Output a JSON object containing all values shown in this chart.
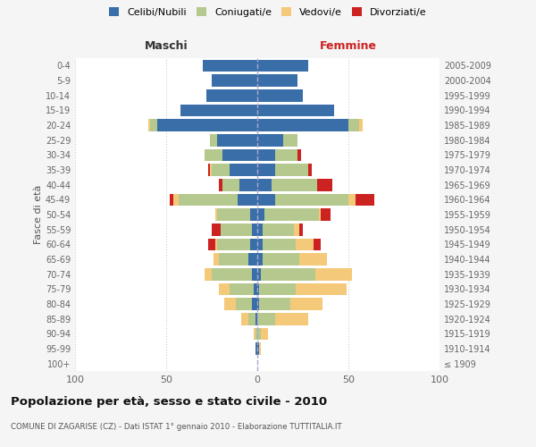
{
  "age_groups": [
    "100+",
    "95-99",
    "90-94",
    "85-89",
    "80-84",
    "75-79",
    "70-74",
    "65-69",
    "60-64",
    "55-59",
    "50-54",
    "45-49",
    "40-44",
    "35-39",
    "30-34",
    "25-29",
    "20-24",
    "15-19",
    "10-14",
    "5-9",
    "0-4"
  ],
  "birth_years": [
    "≤ 1909",
    "1910-1914",
    "1915-1919",
    "1920-1924",
    "1925-1929",
    "1930-1934",
    "1935-1939",
    "1940-1944",
    "1945-1949",
    "1950-1954",
    "1955-1959",
    "1960-1964",
    "1965-1969",
    "1970-1974",
    "1975-1979",
    "1980-1984",
    "1985-1989",
    "1990-1994",
    "1995-1999",
    "2000-2004",
    "2005-2009"
  ],
  "colors": {
    "celibi": "#3a6ea8",
    "coniugati": "#b5c98e",
    "vedovi": "#f5c97a",
    "divorziati": "#cc2222"
  },
  "maschi": {
    "celibi": [
      0,
      1,
      0,
      1,
      3,
      2,
      3,
      5,
      4,
      3,
      4,
      11,
      10,
      15,
      19,
      22,
      55,
      42,
      28,
      25,
      30
    ],
    "coniugati": [
      0,
      0,
      1,
      4,
      9,
      13,
      22,
      16,
      18,
      17,
      18,
      32,
      9,
      10,
      10,
      4,
      4,
      0,
      0,
      0,
      0
    ],
    "vedovi": [
      0,
      0,
      1,
      4,
      6,
      6,
      4,
      3,
      1,
      0,
      1,
      3,
      0,
      1,
      0,
      0,
      1,
      0,
      0,
      0,
      0
    ],
    "divorziati": [
      0,
      0,
      0,
      0,
      0,
      0,
      0,
      0,
      4,
      5,
      0,
      2,
      2,
      1,
      0,
      0,
      0,
      0,
      0,
      0,
      0
    ]
  },
  "femmine": {
    "celibi": [
      0,
      1,
      0,
      0,
      1,
      1,
      2,
      3,
      3,
      3,
      4,
      10,
      8,
      10,
      10,
      14,
      50,
      42,
      25,
      22,
      28
    ],
    "coniugati": [
      0,
      0,
      2,
      10,
      17,
      20,
      30,
      20,
      18,
      17,
      30,
      40,
      25,
      18,
      12,
      8,
      6,
      0,
      0,
      0,
      0
    ],
    "vedovi": [
      0,
      1,
      4,
      18,
      18,
      28,
      20,
      15,
      10,
      3,
      1,
      4,
      0,
      0,
      0,
      0,
      2,
      0,
      0,
      0,
      0
    ],
    "divorziati": [
      0,
      0,
      0,
      0,
      0,
      0,
      0,
      0,
      4,
      2,
      5,
      10,
      8,
      2,
      2,
      0,
      0,
      0,
      0,
      0,
      0
    ]
  },
  "xlim": 100,
  "title": "Popolazione per età, sesso e stato civile - 2010",
  "subtitle": "COMUNE DI ZAGARISE (CZ) - Dati ISTAT 1° gennaio 2010 - Elaborazione TUTTITALIA.IT",
  "ylabel_left": "Fasce di età",
  "xlabel_left": "Maschi",
  "xlabel_right": "Femmine",
  "bg_color": "#f5f5f5",
  "plot_bg": "#ffffff",
  "grid_color": "#cccccc"
}
